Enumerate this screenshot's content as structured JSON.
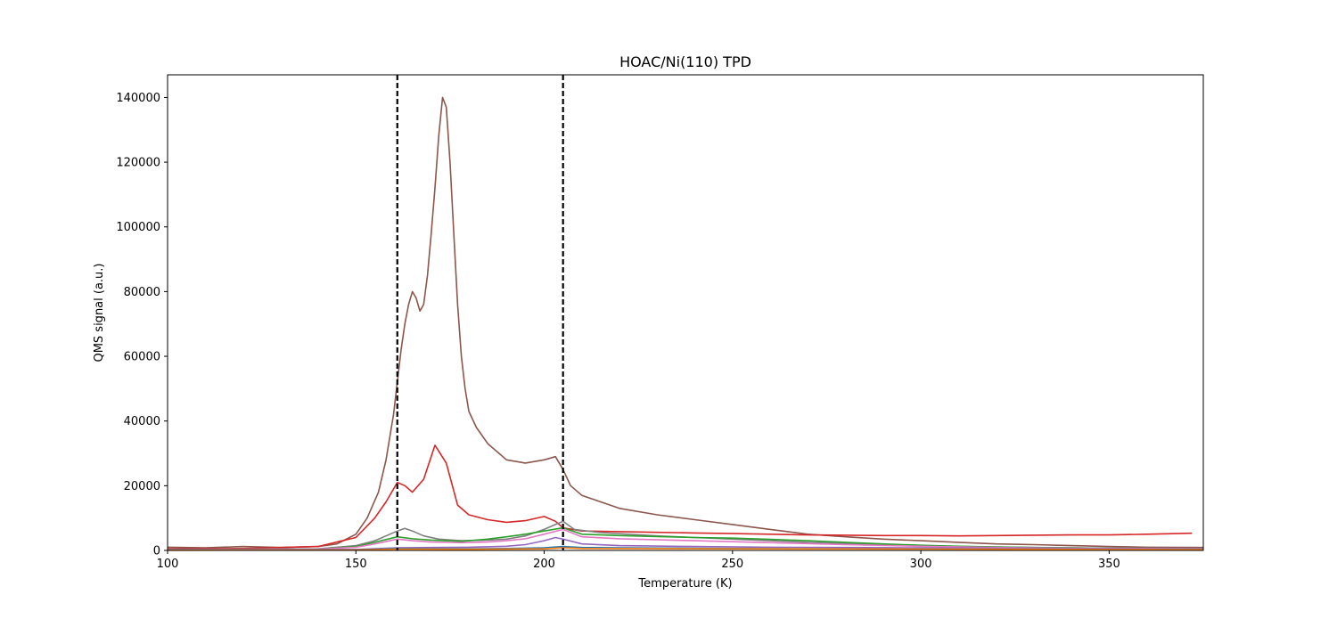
{
  "chart_data": {
    "type": "line",
    "title": "HOAC/Ni(110) TPD",
    "xlabel": "Temperature (K)",
    "ylabel": "QMS signal (a.u.)",
    "xlim": [
      100,
      375
    ],
    "ylim": [
      0,
      147000
    ],
    "x_ticks": [
      100,
      150,
      200,
      250,
      300,
      350
    ],
    "y_ticks": [
      0,
      20000,
      40000,
      60000,
      80000,
      100000,
      120000,
      140000
    ],
    "x_tick_labels": [
      "100",
      "150",
      "200",
      "250",
      "300",
      "350"
    ],
    "y_tick_labels": [
      "0",
      "20000",
      "40000",
      "60000",
      "80000",
      "100000",
      "120000",
      "140000"
    ],
    "grid": false,
    "legend": "none",
    "vertical_lines": [
      {
        "x": 161,
        "style": "dashed",
        "color": "#000000"
      },
      {
        "x": 205,
        "style": "dashed",
        "color": "#000000"
      }
    ],
    "series": [
      {
        "color": "#8c564b",
        "x": [
          100,
          110,
          120,
          130,
          140,
          145,
          150,
          153,
          156,
          158,
          160,
          162,
          163,
          164,
          165,
          166,
          167,
          168,
          169,
          170,
          171,
          172,
          173,
          174,
          175,
          176,
          177,
          178,
          179,
          180,
          182,
          185,
          190,
          195,
          200,
          203,
          205,
          207,
          210,
          220,
          230,
          240,
          250,
          260,
          270,
          280,
          290,
          300,
          310,
          320,
          330,
          340,
          350,
          360,
          375
        ],
        "y": [
          1000,
          800,
          1200,
          900,
          1200,
          2000,
          5000,
          10000,
          18000,
          28000,
          42000,
          62000,
          70000,
          76000,
          80000,
          78000,
          74000,
          76000,
          85000,
          98000,
          112000,
          128000,
          140000,
          137000,
          120000,
          98000,
          76000,
          60000,
          50000,
          43000,
          38000,
          33000,
          28000,
          27000,
          28000,
          29000,
          25000,
          20000,
          17000,
          13000,
          11000,
          9500,
          8000,
          6500,
          5000,
          4200,
          3500,
          3000,
          2500,
          2000,
          1800,
          1500,
          1200,
          1000,
          900
        ]
      },
      {
        "color": "#d62728",
        "x": [
          100,
          120,
          140,
          150,
          155,
          158,
          161,
          163,
          165,
          168,
          171,
          174,
          177,
          180,
          185,
          190,
          195,
          200,
          203,
          205,
          210,
          220,
          230,
          240,
          250,
          260,
          270,
          280,
          290,
          300,
          310,
          320,
          330,
          340,
          350,
          360,
          372
        ],
        "y": [
          500,
          600,
          1200,
          4000,
          10000,
          15000,
          21000,
          20000,
          18000,
          22000,
          32500,
          27000,
          14000,
          11000,
          9500,
          8700,
          9200,
          10500,
          9000,
          7000,
          6000,
          5800,
          5600,
          5400,
          5200,
          5000,
          4800,
          4700,
          4600,
          4600,
          4500,
          4600,
          4700,
          4800,
          4800,
          5000,
          5300
        ]
      },
      {
        "color": "#7f7f7f",
        "x": [
          100,
          140,
          150,
          155,
          158,
          161,
          163,
          165,
          168,
          172,
          178,
          185,
          190,
          195,
          200,
          203,
          205,
          208,
          215,
          230,
          250,
          270,
          290,
          310,
          330,
          350,
          375
        ],
        "y": [
          300,
          500,
          1500,
          3000,
          4500,
          6000,
          6800,
          6000,
          4500,
          3500,
          3000,
          3200,
          3500,
          4500,
          6500,
          8000,
          9000,
          6500,
          5500,
          4500,
          3500,
          2500,
          1800,
          1200,
          900,
          700,
          600
        ]
      },
      {
        "color": "#2ca02c",
        "x": [
          100,
          140,
          150,
          155,
          161,
          165,
          170,
          178,
          185,
          190,
          195,
          200,
          205,
          210,
          220,
          230,
          240,
          250,
          260,
          270,
          280,
          290,
          300,
          310,
          320,
          330,
          340,
          350,
          360,
          375
        ],
        "y": [
          200,
          400,
          1200,
          2500,
          4200,
          3600,
          3200,
          2800,
          3500,
          4200,
          5000,
          6000,
          7000,
          5000,
          4600,
          4300,
          4000,
          3800,
          3400,
          3000,
          2500,
          2000,
          1600,
          1300,
          1100,
          900,
          800,
          700,
          600,
          500
        ]
      },
      {
        "color": "#e377c2",
        "x": [
          100,
          140,
          150,
          155,
          161,
          165,
          170,
          178,
          185,
          190,
          195,
          200,
          205,
          210,
          220,
          240,
          260,
          280,
          300,
          320,
          340,
          375
        ],
        "y": [
          200,
          400,
          1000,
          2000,
          3500,
          3000,
          2600,
          2400,
          2600,
          3000,
          3600,
          5000,
          6500,
          4200,
          3600,
          3000,
          2400,
          1800,
          1300,
          900,
          700,
          500
        ]
      },
      {
        "color": "#9467bd",
        "x": [
          100,
          150,
          161,
          170,
          180,
          190,
          195,
          200,
          203,
          205,
          210,
          220,
          240,
          260,
          280,
          300,
          320,
          350,
          375
        ],
        "y": [
          100,
          300,
          800,
          900,
          1000,
          1300,
          1800,
          3000,
          4000,
          3500,
          2000,
          1500,
          1200,
          1000,
          900,
          800,
          700,
          600,
          500
        ]
      },
      {
        "color": "#1f77b4",
        "x": [
          100,
          150,
          161,
          170,
          180,
          190,
          200,
          205,
          210,
          220,
          250,
          280,
          310,
          340,
          375
        ],
        "y": [
          100,
          200,
          600,
          500,
          500,
          600,
          800,
          1200,
          900,
          800,
          600,
          500,
          400,
          300,
          300
        ]
      },
      {
        "color": "#ff7f0e",
        "x": [
          100,
          150,
          161,
          180,
          200,
          205,
          210,
          250,
          300,
          350,
          375
        ],
        "y": [
          50,
          150,
          400,
          350,
          500,
          800,
          600,
          500,
          400,
          300,
          250
        ]
      }
    ]
  }
}
